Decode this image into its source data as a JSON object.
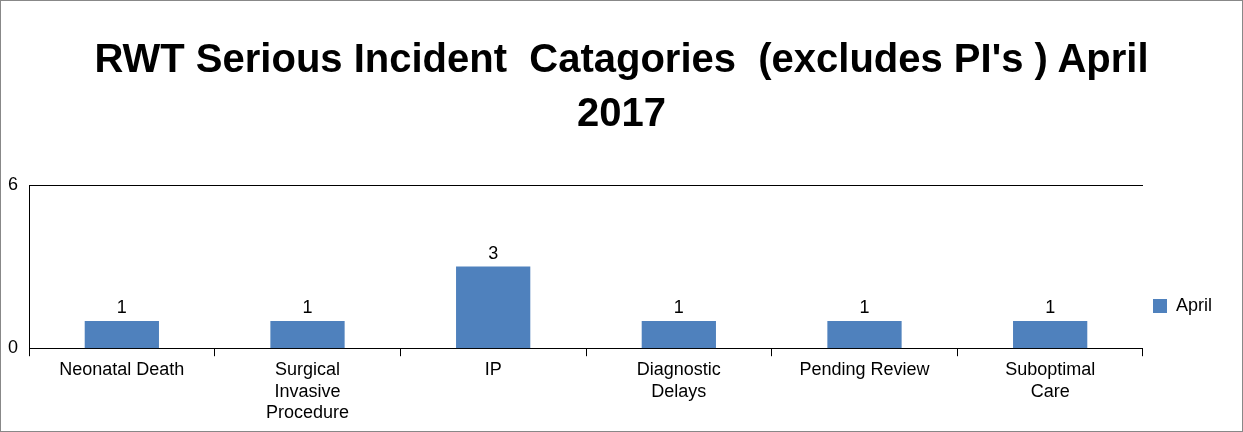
{
  "chart_data": {
    "type": "bar",
    "title": "RWT Serious Incident  Catagories  (excludes PI's ) April 2017",
    "categories": [
      "Neonatal Death",
      "Surgical Invasive Procedure",
      "IP",
      "Diagnostic Delays",
      "Pending Review",
      "Suboptimal Care"
    ],
    "series": [
      {
        "name": "April",
        "color": "#4f81bd",
        "values": [
          1,
          1,
          3,
          1,
          1,
          1
        ]
      }
    ],
    "ylim": [
      0,
      6
    ],
    "yticks": [
      0,
      6
    ],
    "legend": "right",
    "data_labels": true
  }
}
